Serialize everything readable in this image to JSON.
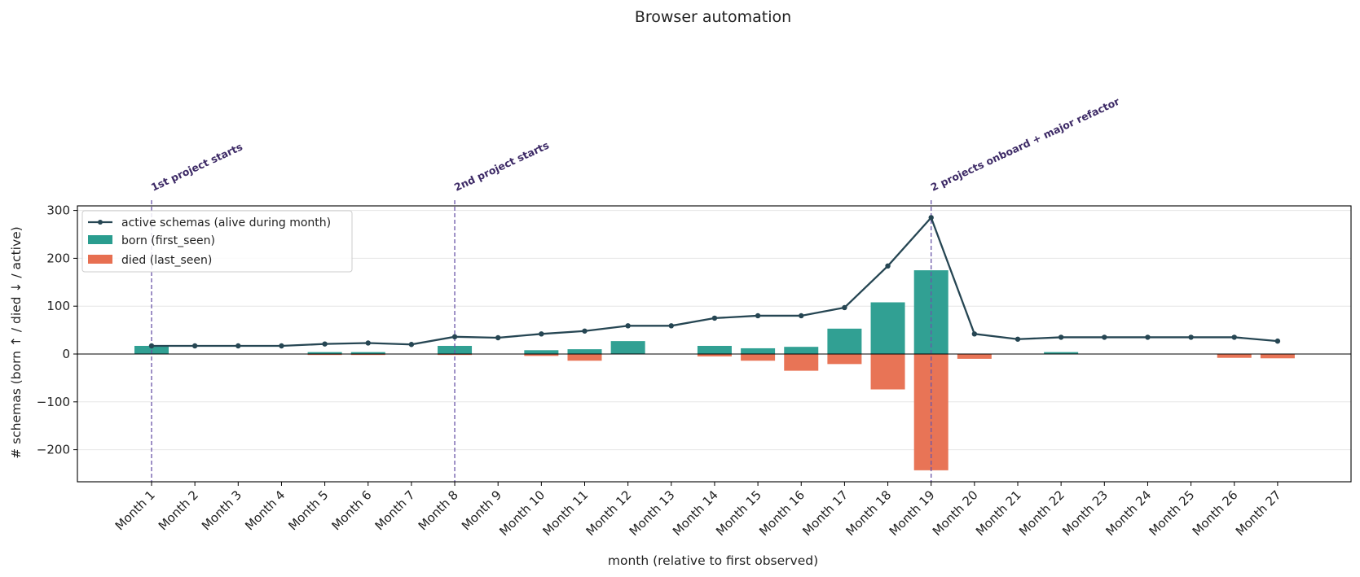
{
  "chart_data": {
    "type": "bar",
    "title": "Browser automation",
    "xlabel": "month (relative to first observed)",
    "ylabel": "# schemas  (born ↑ / died ↓ / active)",
    "ylim": [
      -270,
      312
    ],
    "yticks": [
      -200,
      -100,
      0,
      100,
      200,
      300
    ],
    "ytick_labels": [
      "−200",
      "−100",
      "0",
      "100",
      "200",
      "300"
    ],
    "categories": [
      "Month 1",
      "Month 2",
      "Month 3",
      "Month 4",
      "Month 5",
      "Month 6",
      "Month 7",
      "Month 8",
      "Month 9",
      "Month 10",
      "Month 11",
      "Month 12",
      "Month 13",
      "Month 14",
      "Month 15",
      "Month 16",
      "Month 17",
      "Month 18",
      "Month 19",
      "Month 20",
      "Month 21",
      "Month 22",
      "Month 23",
      "Month 24",
      "Month 25",
      "Month 26",
      "Month 27"
    ],
    "grid": "y",
    "legend_position": "upper-left",
    "series": [
      {
        "name": "active schemas (alive during month)",
        "kind": "line",
        "color": "#264653",
        "values": [
          17,
          17,
          17,
          17,
          21,
          23,
          20,
          36,
          34,
          42,
          48,
          59,
          59,
          75,
          80,
          80,
          97,
          184,
          285,
          42,
          31,
          35,
          35,
          35,
          35,
          35,
          27
        ]
      },
      {
        "name": "born (first_seen)",
        "kind": "bar",
        "color": "#2a9d8f",
        "values": [
          17,
          0,
          0,
          0,
          4,
          4,
          0,
          17,
          0,
          8,
          10,
          27,
          0,
          17,
          12,
          15,
          53,
          108,
          175,
          0,
          0,
          4,
          0,
          0,
          0,
          0,
          0
        ]
      },
      {
        "name": "died (last_seen)",
        "kind": "bar",
        "color": "#e76f51",
        "values": [
          0,
          0,
          0,
          0,
          -2,
          -2,
          0,
          -2,
          0,
          -4,
          -14,
          0,
          0,
          -5,
          -14,
          -35,
          -21,
          -74,
          -243,
          -10,
          0,
          0,
          0,
          0,
          0,
          -8,
          -9
        ]
      }
    ],
    "annotations": [
      {
        "category_index": 0,
        "text": "1st project starts"
      },
      {
        "category_index": 7,
        "text": "2nd project starts"
      },
      {
        "category_index": 18,
        "text": "2 projects onboard + major refactor"
      }
    ]
  }
}
